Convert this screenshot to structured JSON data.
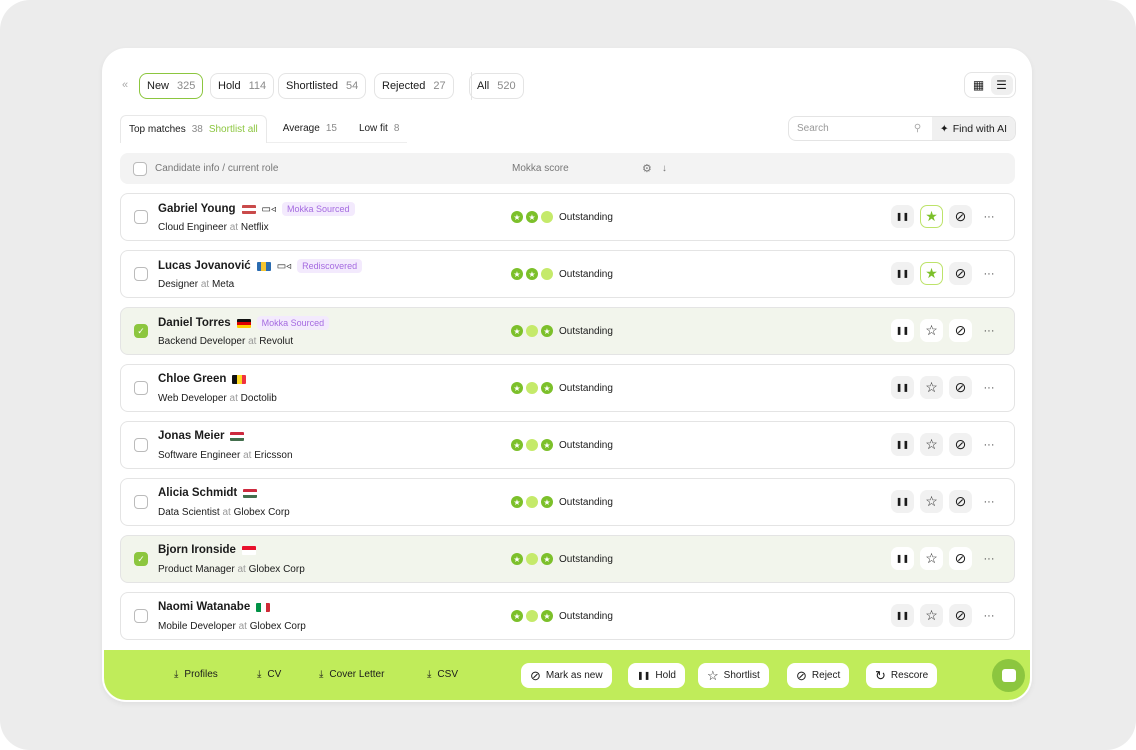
{
  "status_tabs": [
    {
      "label": "New",
      "count": "325",
      "active": true
    },
    {
      "label": "Hold",
      "count": "114"
    },
    {
      "label": "Shortlisted",
      "count": "54"
    },
    {
      "label": "Rejected",
      "count": "27"
    },
    {
      "label": "All",
      "count": "520"
    }
  ],
  "collapse_icon": "«",
  "sub_tabs": [
    {
      "label": "Top matches",
      "count": "38",
      "action": "Shortlist all"
    },
    {
      "label": "Average",
      "count": "15"
    },
    {
      "label": "Low fit",
      "count": "8"
    }
  ],
  "search": {
    "placeholder": "Search",
    "ai_label": "Find with AI"
  },
  "table": {
    "col_candidate": "Candidate info / current role",
    "col_score": "Mokka score"
  },
  "accent": "#8cc63f",
  "candidates": [
    {
      "name": "Gabriel Young",
      "flag": [
        "#c94a4a",
        "#ffffff",
        "#c94a4a"
      ],
      "flag_dir": "h",
      "video": true,
      "tag": "Mokka Sourced",
      "role": "Cloud Engineer",
      "company": "Netflix",
      "score": "Outstanding",
      "dots": [
        "s",
        "s",
        "p"
      ],
      "shortlisted": true,
      "selected": false
    },
    {
      "name": "Lucas Jovanović",
      "flag": [
        "#2b6cb0",
        "#f4c430",
        "#2b6cb0"
      ],
      "flag_dir": "v",
      "video": true,
      "tag": "Rediscovered",
      "role": "Designer",
      "company": "Meta",
      "score": "Outstanding",
      "dots": [
        "s",
        "s",
        "p"
      ],
      "shortlisted": true,
      "selected": false
    },
    {
      "name": "Daniel Torres",
      "flag": [
        "#111111",
        "#dd0000",
        "#ffce00"
      ],
      "flag_dir": "h",
      "video": false,
      "tag": "Mokka Sourced",
      "role": "Backend Developer",
      "company": "Revolut",
      "score": "Outstanding",
      "dots": [
        "s",
        "p",
        "s"
      ],
      "shortlisted": false,
      "selected": true
    },
    {
      "name": "Chloe Green",
      "flag": [
        "#111111",
        "#fdda24",
        "#ef3340"
      ],
      "flag_dir": "v",
      "video": false,
      "tag": "",
      "role": "Web Developer",
      "company": "Doctolib",
      "score": "Outstanding",
      "dots": [
        "s",
        "p",
        "s"
      ],
      "shortlisted": false,
      "selected": false
    },
    {
      "name": "Jonas Meier",
      "flag": [
        "#cd2a3e",
        "#ffffff",
        "#436f4d"
      ],
      "flag_dir": "h",
      "video": false,
      "tag": "",
      "role": "Software Engineer",
      "company": "Ericsson",
      "score": "Outstanding",
      "dots": [
        "s",
        "p",
        "s"
      ],
      "shortlisted": false,
      "selected": false
    },
    {
      "name": "Alicia Schmidt",
      "flag": [
        "#cd2a3e",
        "#ffffff",
        "#436f4d"
      ],
      "flag_dir": "h",
      "video": false,
      "tag": "",
      "role": "Data Scientist",
      "company": "Globex Corp",
      "score": "Outstanding",
      "dots": [
        "s",
        "p",
        "s"
      ],
      "shortlisted": false,
      "selected": false
    },
    {
      "name": "Bjorn Ironside",
      "flag": [
        "#e8112d",
        "#ffffff"
      ],
      "flag_dir": "h",
      "video": false,
      "tag": "",
      "role": "Product Manager",
      "company": "Globex Corp",
      "score": "Outstanding",
      "dots": [
        "s",
        "p",
        "s"
      ],
      "shortlisted": false,
      "selected": true
    },
    {
      "name": "Naomi Watanabe",
      "flag": [
        "#009246",
        "#ffffff",
        "#ce2b37"
      ],
      "flag_dir": "v",
      "video": false,
      "tag": "",
      "role": "Mobile Developer",
      "company": "Globex Corp",
      "score": "Outstanding",
      "dots": [
        "s",
        "p",
        "s"
      ],
      "shortlisted": false,
      "selected": false
    }
  ],
  "at_label": "at",
  "bottom_bar": {
    "downloads": [
      "Profiles",
      "CV",
      "Cover Letter",
      "CSV"
    ],
    "buttons": [
      {
        "label": "Mark as new",
        "icon": "eye-off-icon"
      },
      {
        "label": "Hold",
        "icon": "pause-icon"
      },
      {
        "label": "Shortlist",
        "icon": "star-icon"
      },
      {
        "label": "Reject",
        "icon": "reject-icon"
      },
      {
        "label": "Rescore",
        "icon": "refresh-icon"
      }
    ],
    "color": "#c0ec5a"
  }
}
